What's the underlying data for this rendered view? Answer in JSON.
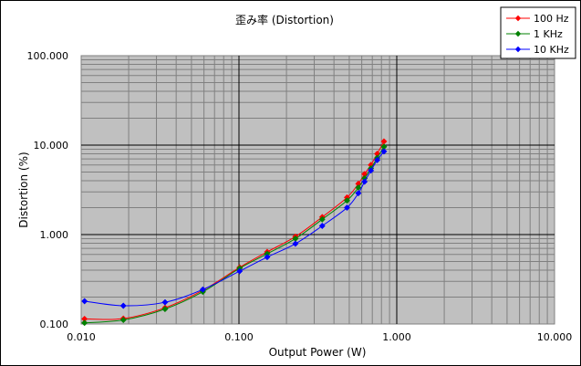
{
  "chart_data": {
    "type": "line",
    "title": "歪み率 (Distortion)",
    "xlabel": "Output Power (W)",
    "ylabel": "Distortion (%)",
    "x_scale": "log",
    "y_scale": "log",
    "xlim": [
      0.01,
      10
    ],
    "ylim": [
      0.1,
      100
    ],
    "x_ticks": [
      "0.010",
      "0.100",
      "1.000",
      "10.000"
    ],
    "y_ticks": [
      "0.100",
      "1.000",
      "10.000",
      "100.000"
    ],
    "grid": true,
    "legend_position": "top-right",
    "series": [
      {
        "name": "100 Hz",
        "color": "#ff0000",
        "marker": "diamond",
        "x": [
          0.0105,
          0.0185,
          0.034,
          0.059,
          0.101,
          0.151,
          0.228,
          0.337,
          0.484,
          0.571,
          0.625,
          0.686,
          0.752,
          0.83
        ],
        "y": [
          0.114,
          0.115,
          0.152,
          0.238,
          0.43,
          0.64,
          0.95,
          1.57,
          2.6,
          3.7,
          4.75,
          6.0,
          8.0,
          11.0
        ]
      },
      {
        "name": "1 KHz",
        "color": "#008000",
        "marker": "diamond",
        "x": [
          0.0105,
          0.0185,
          0.034,
          0.059,
          0.101,
          0.151,
          0.228,
          0.337,
          0.484,
          0.571,
          0.625,
          0.686,
          0.752,
          0.83
        ],
        "y": [
          0.103,
          0.111,
          0.147,
          0.229,
          0.42,
          0.61,
          0.9,
          1.48,
          2.4,
          3.35,
          4.25,
          5.5,
          7.2,
          9.6
        ]
      },
      {
        "name": "10 KHz",
        "color": "#0000ff",
        "marker": "diamond",
        "x": [
          0.0105,
          0.0185,
          0.034,
          0.059,
          0.101,
          0.151,
          0.228,
          0.337,
          0.484,
          0.571,
          0.625,
          0.686,
          0.752,
          0.83
        ],
        "y": [
          0.18,
          0.16,
          0.175,
          0.243,
          0.39,
          0.56,
          0.79,
          1.25,
          2.0,
          2.9,
          3.9,
          5.2,
          6.8,
          8.5
        ]
      }
    ]
  },
  "colors": {
    "plot_background": "#c0c0c0",
    "major_grid": "#000000",
    "minor_grid": "#808080",
    "page_background": "#ffffff"
  }
}
